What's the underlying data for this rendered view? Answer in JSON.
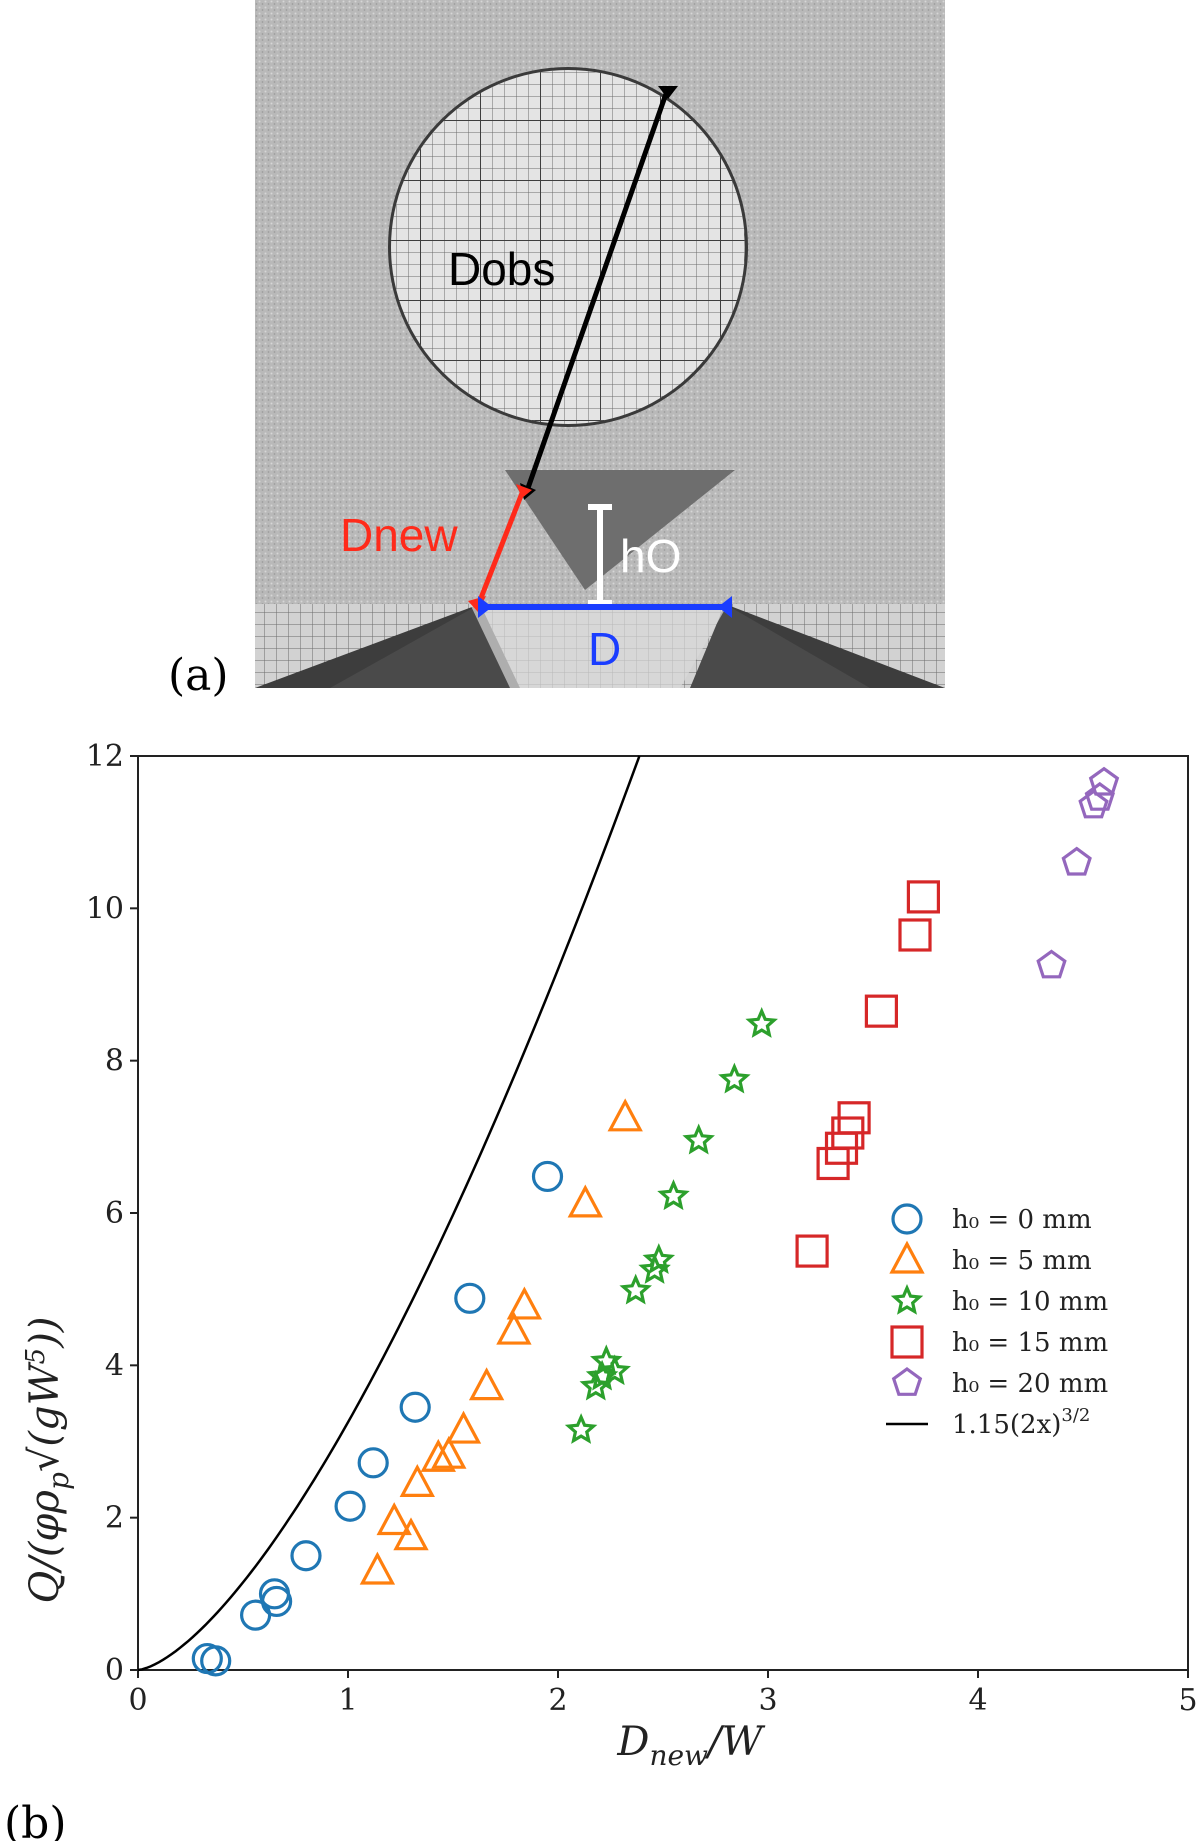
{
  "panel_a": {
    "label": "(a)",
    "annotations": {
      "dobs": "Dobs",
      "dnew": "Dnew",
      "h0": "hO",
      "d": "D"
    },
    "colors": {
      "dobs": "#000000",
      "dnew": "#ff2a1a",
      "h0": "#ffffff",
      "d": "#1a3dff"
    }
  },
  "panel_b": {
    "label": "(b)"
  },
  "chart_data": {
    "type": "scatter",
    "xlabel": "D_new/W",
    "ylabel": "Q/(φρ_p√(gW⁵))",
    "xlim": [
      0,
      5
    ],
    "ylim": [
      0,
      12
    ],
    "xticks": [
      "0",
      "1",
      "2",
      "3",
      "4",
      "5"
    ],
    "yticks": [
      "0",
      "2",
      "4",
      "6",
      "8",
      "10",
      "12"
    ],
    "series": [
      {
        "name": "h₀ = 0 mm",
        "legend_label": "h₀  =  0 mm",
        "marker": "circle",
        "color": "#1f77b4",
        "points": [
          [
            0.33,
            0.15
          ],
          [
            0.37,
            0.12
          ],
          [
            0.56,
            0.72
          ],
          [
            0.65,
            1.0
          ],
          [
            0.66,
            0.9
          ],
          [
            0.8,
            1.5
          ],
          [
            1.01,
            2.15
          ],
          [
            1.12,
            2.72
          ],
          [
            1.32,
            3.45
          ],
          [
            1.58,
            4.88
          ],
          [
            1.95,
            6.48
          ]
        ]
      },
      {
        "name": "h₀ = 5 mm",
        "legend_label": "h₀  =  5 mm",
        "marker": "triangle",
        "color": "#ff7f0e",
        "points": [
          [
            1.14,
            1.3
          ],
          [
            1.22,
            1.95
          ],
          [
            1.3,
            1.75
          ],
          [
            1.33,
            2.45
          ],
          [
            1.43,
            2.78
          ],
          [
            1.48,
            2.82
          ],
          [
            1.55,
            3.15
          ],
          [
            1.66,
            3.72
          ],
          [
            1.79,
            4.45
          ],
          [
            1.84,
            4.78
          ],
          [
            2.13,
            6.12
          ],
          [
            2.32,
            7.25
          ]
        ]
      },
      {
        "name": "h₀ = 10 mm",
        "legend_label": "h₀  =  10 mm",
        "marker": "star",
        "color": "#2ca02c",
        "points": [
          [
            2.11,
            3.15
          ],
          [
            2.18,
            3.72
          ],
          [
            2.21,
            3.85
          ],
          [
            2.23,
            4.05
          ],
          [
            2.27,
            3.92
          ],
          [
            2.37,
            4.98
          ],
          [
            2.46,
            5.25
          ],
          [
            2.48,
            5.38
          ],
          [
            2.55,
            6.22
          ],
          [
            2.67,
            6.95
          ],
          [
            2.84,
            7.75
          ],
          [
            2.97,
            8.48
          ]
        ]
      },
      {
        "name": "h₀ = 15 mm",
        "legend_label": "h₀  =  15 mm",
        "marker": "square",
        "color": "#d62728",
        "points": [
          [
            3.21,
            5.5
          ],
          [
            3.31,
            6.65
          ],
          [
            3.35,
            6.85
          ],
          [
            3.38,
            7.05
          ],
          [
            3.41,
            7.25
          ],
          [
            3.54,
            8.65
          ],
          [
            3.7,
            9.65
          ],
          [
            3.74,
            10.15
          ]
        ]
      },
      {
        "name": "h₀ = 20 mm",
        "legend_label": "h₀  =  20 mm",
        "marker": "pentagon",
        "color": "#9467bd",
        "points": [
          [
            4.35,
            9.25
          ],
          [
            4.47,
            10.6
          ],
          [
            4.55,
            11.35
          ],
          [
            4.58,
            11.45
          ],
          [
            4.6,
            11.65
          ]
        ]
      },
      {
        "name": "1.15(2x)^(3/2)",
        "legend_label": "1.15(2x)",
        "legend_superscript": "3/2",
        "marker": "line",
        "color": "#000000",
        "formula": "1.15*(2x)^1.5"
      }
    ]
  }
}
